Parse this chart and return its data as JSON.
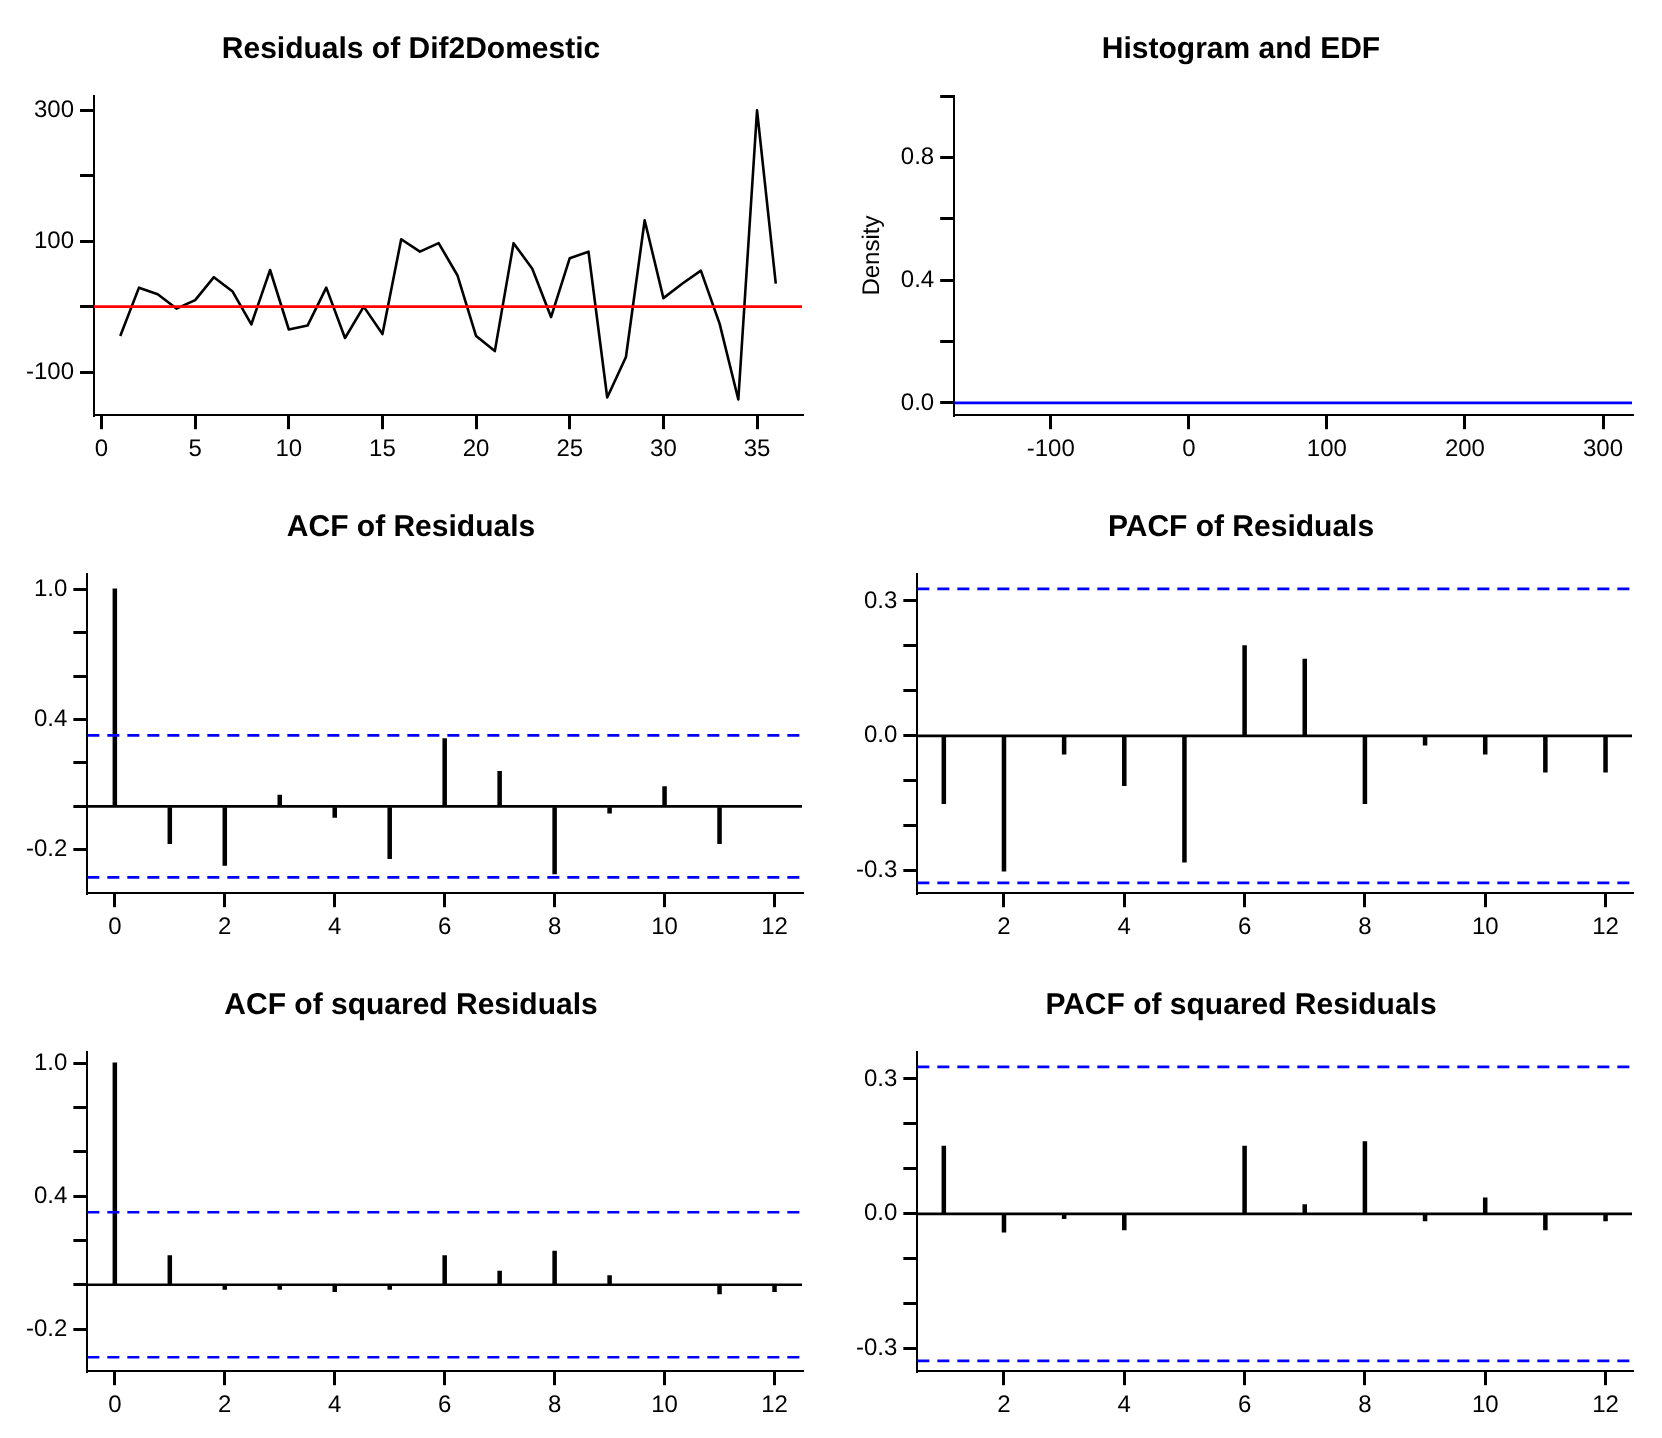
{
  "chart_data": [
    {
      "type": "line",
      "title": "Residuals of Dif2Domestic",
      "x": [
        1,
        2,
        3,
        4,
        5,
        6,
        7,
        8,
        9,
        10,
        11,
        12,
        13,
        14,
        15,
        16,
        17,
        18,
        19,
        20,
        21,
        22,
        23,
        24,
        25,
        26,
        27,
        28,
        29,
        30,
        31,
        32,
        33,
        34,
        35,
        36
      ],
      "series": [
        {
          "color": "#000000",
          "values": [
            -45,
            29,
            19,
            -3,
            10,
            45,
            23,
            -27,
            56,
            -35,
            -29,
            29,
            -48,
            0,
            -42,
            103,
            84,
            97,
            48,
            -45,
            -68,
            97,
            58,
            -16,
            74,
            84,
            -139,
            -77,
            132,
            13,
            35,
            55,
            -26,
            -142,
            300,
            35
          ]
        }
      ],
      "xlim": [
        -0.4,
        37.4
      ],
      "xticks": [
        0,
        5,
        10,
        15,
        20,
        25,
        30,
        35
      ],
      "ylim": [
        -166,
        322
      ],
      "yticks": [
        -100,
        {
          "value": 0,
          "label": null
        },
        100,
        {
          "value": 200,
          "label": null
        },
        300
      ],
      "ref_lines": [
        {
          "axis": "y",
          "value": 0,
          "color": "#ff0000",
          "line_style": "solid"
        }
      ]
    },
    {
      "type": "line",
      "title": "Histogram and EDF",
      "ylabel": "Density",
      "x": [
        -170,
        321
      ],
      "series": [
        {
          "color": "#0000ff",
          "values": [
            0,
            0
          ]
        }
      ],
      "xlim": [
        -170,
        321
      ],
      "xticks": [
        -100,
        0,
        100,
        200,
        300
      ],
      "ylim": [
        -0.04,
        1.0
      ],
      "yticks": [
        {
          "value": 0,
          "label": "0.0"
        },
        {
          "value": 0.2,
          "label": null
        },
        0.4,
        {
          "value": 0.6,
          "label": null
        },
        0.8,
        {
          "value": 1,
          "label": null
        }
      ]
    },
    {
      "type": "bar",
      "title": "ACF of Residuals",
      "x": [
        0,
        1,
        2,
        3,
        4,
        5,
        6,
        7,
        8,
        9,
        10,
        11,
        12
      ],
      "series": [
        {
          "color": "#000000",
          "values": [
            1.0,
            -0.17,
            -0.27,
            0.05,
            -0.05,
            -0.24,
            0.31,
            0.16,
            -0.31,
            -0.03,
            0.09,
            -0.17,
            0
          ]
        }
      ],
      "xlim": [
        -0.5,
        12.5
      ],
      "xticks": [
        0,
        2,
        4,
        6,
        8,
        10,
        12
      ],
      "ylim": [
        -0.4,
        1.07
      ],
      "yticks": [
        -0.2,
        {
          "value": 0,
          "label": null
        },
        {
          "value": 0.2,
          "label": null
        },
        0.4,
        {
          "value": 0.6,
          "label": null
        },
        {
          "value": 0.8,
          "label": null
        },
        {
          "value": 1,
          "label": "1.0"
        }
      ],
      "ref_lines": [
        {
          "axis": "y",
          "value": 0,
          "color": "#000000",
          "line_style": "solid"
        },
        {
          "axis": "y",
          "value": 0.327,
          "color": "#0000ff",
          "line_style": "dashed"
        },
        {
          "axis": "y",
          "value": -0.327,
          "color": "#0000ff",
          "line_style": "dashed"
        }
      ]
    },
    {
      "type": "bar",
      "title": "PACF of Residuals",
      "x": [
        1,
        2,
        3,
        4,
        5,
        6,
        7,
        8,
        9,
        10,
        11,
        12
      ],
      "series": [
        {
          "color": "#000000",
          "values": [
            -0.15,
            -0.3,
            -0.04,
            -0.11,
            -0.28,
            0.2,
            0.17,
            -0.15,
            -0.02,
            -0.04,
            -0.08,
            -0.08
          ]
        }
      ],
      "xlim": [
        0.56,
        12.44
      ],
      "xticks": [
        2,
        4,
        6,
        8,
        10,
        12
      ],
      "ylim": [
        -0.35,
        0.36
      ],
      "yticks": [
        -0.3,
        {
          "value": -0.2,
          "label": null
        },
        {
          "value": -0.1,
          "label": null
        },
        {
          "value": 0,
          "label": "0.0"
        },
        {
          "value": 0.1,
          "label": null
        },
        {
          "value": 0.2,
          "label": null
        },
        0.3
      ],
      "ref_lines": [
        {
          "axis": "y",
          "value": 0,
          "color": "#000000",
          "line_style": "solid"
        },
        {
          "axis": "y",
          "value": 0.327,
          "color": "#0000ff",
          "line_style": "dashed"
        },
        {
          "axis": "y",
          "value": -0.327,
          "color": "#0000ff",
          "line_style": "dashed"
        }
      ]
    },
    {
      "type": "bar",
      "title": "ACF of squared Residuals",
      "x": [
        0,
        1,
        2,
        3,
        4,
        5,
        6,
        7,
        8,
        9,
        10,
        11,
        12
      ],
      "series": [
        {
          "color": "#000000",
          "values": [
            1.0,
            0.13,
            -0.02,
            -0.02,
            -0.03,
            -0.02,
            0.13,
            0.06,
            0.15,
            0.04,
            0,
            -0.04,
            -0.03
          ]
        }
      ],
      "xlim": [
        -0.5,
        12.5
      ],
      "xticks": [
        0,
        2,
        4,
        6,
        8,
        10,
        12
      ],
      "ylim": [
        -0.39,
        1.05
      ],
      "yticks": [
        -0.2,
        {
          "value": 0,
          "label": null
        },
        {
          "value": 0.2,
          "label": null
        },
        0.4,
        {
          "value": 0.6,
          "label": null
        },
        {
          "value": 0.8,
          "label": null
        },
        {
          "value": 1,
          "label": "1.0"
        }
      ],
      "ref_lines": [
        {
          "axis": "y",
          "value": 0,
          "color": "#000000",
          "line_style": "solid"
        },
        {
          "axis": "y",
          "value": 0.327,
          "color": "#0000ff",
          "line_style": "dashed"
        },
        {
          "axis": "y",
          "value": -0.327,
          "color": "#0000ff",
          "line_style": "dashed"
        }
      ]
    },
    {
      "type": "bar",
      "title": "PACF of squared Residuals",
      "x": [
        1,
        2,
        3,
        4,
        5,
        6,
        7,
        8,
        9,
        10,
        11,
        12
      ],
      "series": [
        {
          "color": "#000000",
          "values": [
            0.15,
            -0.04,
            -0.01,
            -0.035,
            0,
            0.15,
            0.02,
            0.16,
            -0.015,
            0.035,
            -0.035,
            -0.015
          ]
        }
      ],
      "xlim": [
        0.56,
        12.44
      ],
      "xticks": [
        2,
        4,
        6,
        8,
        10,
        12
      ],
      "ylim": [
        -0.35,
        0.36
      ],
      "yticks": [
        -0.3,
        {
          "value": -0.2,
          "label": null
        },
        {
          "value": -0.1,
          "label": null
        },
        {
          "value": 0,
          "label": "0.0"
        },
        {
          "value": 0.1,
          "label": null
        },
        {
          "value": 0.2,
          "label": null
        },
        0.3
      ],
      "ref_lines": [
        {
          "axis": "y",
          "value": 0,
          "color": "#000000",
          "line_style": "solid"
        },
        {
          "axis": "y",
          "value": 0.327,
          "color": "#0000ff",
          "line_style": "dashed"
        },
        {
          "axis": "y",
          "value": -0.327,
          "color": "#0000ff",
          "line_style": "dashed"
        }
      ]
    }
  ]
}
